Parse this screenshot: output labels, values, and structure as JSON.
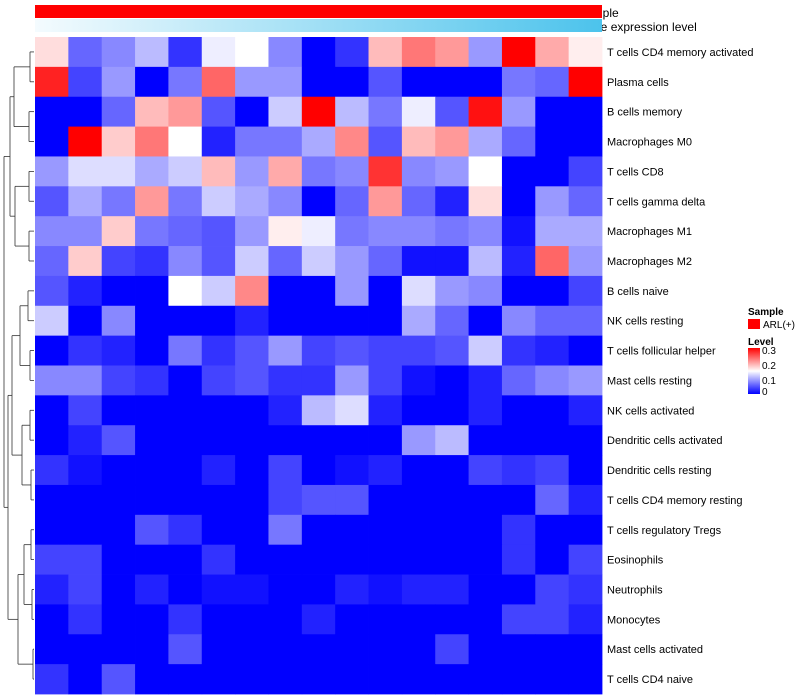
{
  "chart_data": {
    "type": "heatmap",
    "top_annotations": [
      {
        "label": "Sample",
        "color": "#ff0000"
      },
      {
        "label": "Gene expression level",
        "gradient": [
          "#f4fbfe",
          "#4cc3ec"
        ]
      }
    ],
    "rows": [
      "T cells CD4 memory activated",
      "Plasma cells",
      "B cells memory",
      "Macrophages M0",
      "T cells CD8",
      "T cells gamma delta",
      "Macrophages M1",
      "Macrophages M2",
      "B cells naive",
      "NK cells resting",
      "T cells follicular helper",
      "Mast cells resting",
      "NK cells activated",
      "Dendritic cells activated",
      "Dendritic cells resting",
      "T cells CD4 memory resting",
      "T cells regulatory  Tregs",
      "Eosinophils",
      "Neutrophils",
      "Monocytes",
      "Mast cells activated",
      "T cells CD4 naive"
    ],
    "n_columns": 17,
    "values": [
      [
        0.17,
        0.06,
        0.08,
        0.11,
        0.03,
        0.14,
        0.15,
        0.08,
        0.0,
        0.03,
        0.19,
        0.23,
        0.21,
        0.09,
        0.3,
        0.2,
        0.16
      ],
      [
        0.28,
        0.04,
        0.09,
        0.0,
        0.07,
        0.24,
        0.09,
        0.09,
        0.0,
        0.0,
        0.05,
        0.0,
        0.0,
        0.0,
        0.07,
        0.06,
        0.3
      ],
      [
        0.0,
        0.0,
        0.06,
        0.19,
        0.21,
        0.05,
        0.0,
        0.12,
        0.3,
        0.11,
        0.07,
        0.14,
        0.05,
        0.29,
        0.09,
        0.0,
        0.0
      ],
      [
        0.0,
        0.3,
        0.18,
        0.23,
        0.15,
        0.02,
        0.07,
        0.07,
        0.1,
        0.22,
        0.05,
        0.19,
        0.21,
        0.1,
        0.06,
        0.0,
        0.0
      ],
      [
        0.09,
        0.13,
        0.13,
        0.1,
        0.12,
        0.19,
        0.09,
        0.2,
        0.07,
        0.08,
        0.27,
        0.08,
        0.09,
        0.15,
        0.0,
        0.0,
        0.04
      ],
      [
        0.05,
        0.1,
        0.07,
        0.21,
        0.07,
        0.12,
        0.1,
        0.08,
        0.0,
        0.06,
        0.21,
        0.06,
        0.02,
        0.17,
        0.0,
        0.09,
        0.06
      ],
      [
        0.08,
        0.08,
        0.18,
        0.07,
        0.06,
        0.05,
        0.09,
        0.16,
        0.14,
        0.07,
        0.08,
        0.08,
        0.07,
        0.08,
        0.01,
        0.1,
        0.1
      ],
      [
        0.06,
        0.18,
        0.04,
        0.03,
        0.08,
        0.05,
        0.12,
        0.06,
        0.12,
        0.09,
        0.06,
        0.01,
        0.01,
        0.11,
        0.02,
        0.24,
        0.09
      ],
      [
        0.05,
        0.02,
        0.0,
        0.0,
        0.15,
        0.12,
        0.22,
        0.0,
        0.0,
        0.09,
        0.0,
        0.13,
        0.09,
        0.08,
        0.0,
        0.0,
        0.04
      ],
      [
        0.12,
        0.0,
        0.08,
        0.0,
        0.0,
        0.0,
        0.02,
        0.0,
        0.0,
        0.0,
        0.0,
        0.1,
        0.06,
        0.0,
        0.08,
        0.06,
        0.06
      ],
      [
        0.0,
        0.03,
        0.02,
        0.0,
        0.07,
        0.03,
        0.05,
        0.09,
        0.04,
        0.05,
        0.04,
        0.04,
        0.05,
        0.12,
        0.03,
        0.02,
        0.0
      ],
      [
        0.08,
        0.08,
        0.04,
        0.03,
        0.0,
        0.04,
        0.05,
        0.03,
        0.03,
        0.09,
        0.04,
        0.01,
        0.0,
        0.02,
        0.06,
        0.08,
        0.09
      ],
      [
        0.0,
        0.04,
        0.0,
        0.0,
        0.0,
        0.0,
        0.0,
        0.02,
        0.11,
        0.13,
        0.02,
        0.0,
        0.0,
        0.02,
        0.0,
        0.0,
        0.02
      ],
      [
        0.0,
        0.02,
        0.05,
        0.0,
        0.0,
        0.0,
        0.0,
        0.0,
        0.0,
        0.0,
        0.0,
        0.09,
        0.11,
        0.0,
        0.0,
        0.0,
        0.0
      ],
      [
        0.03,
        0.01,
        0.0,
        0.0,
        0.0,
        0.02,
        0.0,
        0.04,
        0.0,
        0.01,
        0.02,
        0.0,
        0.0,
        0.04,
        0.03,
        0.04,
        0.0
      ],
      [
        0.0,
        0.0,
        0.0,
        0.0,
        0.0,
        0.0,
        0.0,
        0.04,
        0.05,
        0.05,
        0.0,
        0.0,
        0.0,
        0.0,
        0.0,
        0.06,
        0.02
      ],
      [
        0.0,
        0.0,
        0.0,
        0.05,
        0.03,
        0.0,
        0.0,
        0.07,
        0.0,
        0.0,
        0.0,
        0.0,
        0.0,
        0.0,
        0.03,
        0.0,
        0.0
      ],
      [
        0.04,
        0.04,
        0.0,
        0.0,
        0.0,
        0.03,
        0.0,
        0.0,
        0.0,
        0.0,
        0.0,
        0.0,
        0.0,
        0.0,
        0.03,
        0.0,
        0.04
      ],
      [
        0.02,
        0.04,
        0.0,
        0.02,
        0.0,
        0.01,
        0.01,
        0.0,
        0.0,
        0.02,
        0.01,
        0.02,
        0.02,
        0.0,
        0.0,
        0.04,
        0.03
      ],
      [
        0.0,
        0.03,
        0.0,
        0.0,
        0.03,
        0.0,
        0.0,
        0.0,
        0.02,
        0.0,
        0.0,
        0.0,
        0.0,
        0.0,
        0.04,
        0.04,
        0.02
      ],
      [
        0.0,
        0.0,
        0.0,
        0.0,
        0.05,
        0.0,
        0.0,
        0.0,
        0.0,
        0.0,
        0.0,
        0.0,
        0.04,
        0.0,
        0.0,
        0.0,
        0.0
      ],
      [
        0.03,
        0.0,
        0.05,
        0.0,
        0.0,
        0.0,
        0.0,
        0.0,
        0.0,
        0.0,
        0.0,
        0.0,
        0.0,
        0.0,
        0.0,
        0.0,
        0.0
      ]
    ],
    "legend": {
      "sample_title": "Sample",
      "sample_entry": "ARL(+)",
      "sample_color": "#ff0000",
      "level_title": "Level",
      "level_ticks": [
        "0.3",
        "0.2",
        "0.1",
        "0"
      ],
      "level_range": [
        0,
        0.3
      ],
      "colors": {
        "low": "#0000ff",
        "mid": "#ffffff",
        "high": "#ff0000"
      }
    }
  }
}
